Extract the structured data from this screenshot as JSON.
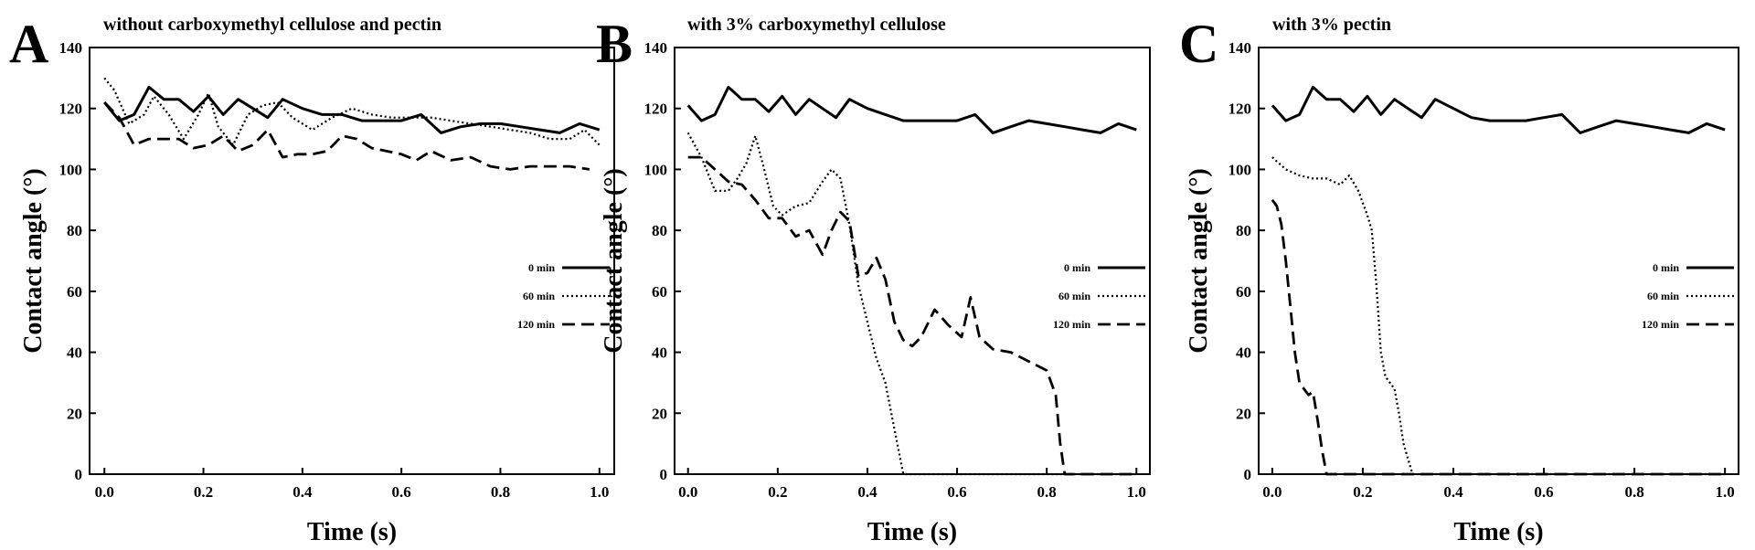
{
  "chart_data": [
    {
      "type": "line",
      "panel": "A",
      "title": "without carboxymethyl cellulose and pectin",
      "xlabel": "Time (s)",
      "ylabel": "Contact angle (°)",
      "xlim": [
        -0.03,
        1.03
      ],
      "ylim": [
        0,
        140
      ],
      "xticks": [
        "0.0",
        "0.2",
        "0.4",
        "0.6",
        "0.8",
        "1.0"
      ],
      "yticks": [
        "0",
        "20",
        "40",
        "60",
        "80",
        "100",
        "120",
        "140"
      ],
      "grid": false,
      "legend_position": "right",
      "series": [
        {
          "name": "0 min",
          "style": "solid",
          "x": [
            0.0,
            0.03,
            0.06,
            0.09,
            0.12,
            0.15,
            0.18,
            0.21,
            0.24,
            0.27,
            0.3,
            0.33,
            0.36,
            0.4,
            0.44,
            0.48,
            0.52,
            0.56,
            0.6,
            0.64,
            0.68,
            0.72,
            0.76,
            0.8,
            0.84,
            0.88,
            0.92,
            0.96,
            1.0
          ],
          "y": [
            122,
            116,
            118,
            127,
            123,
            123,
            119,
            124,
            118,
            123,
            120,
            117,
            123,
            120,
            118,
            118,
            116,
            116,
            116,
            118,
            112,
            114,
            115,
            115,
            114,
            113,
            112,
            115,
            113
          ]
        },
        {
          "name": "60 min",
          "style": "dotted",
          "x": [
            0.0,
            0.02,
            0.05,
            0.08,
            0.1,
            0.13,
            0.16,
            0.19,
            0.21,
            0.23,
            0.26,
            0.29,
            0.32,
            0.35,
            0.38,
            0.42,
            0.46,
            0.5,
            0.54,
            0.58,
            0.62,
            0.66,
            0.7,
            0.74,
            0.78,
            0.82,
            0.86,
            0.9,
            0.94,
            0.97,
            1.0
          ],
          "y": [
            130,
            126,
            115,
            118,
            124,
            118,
            110,
            118,
            125,
            114,
            108,
            118,
            121,
            122,
            117,
            113,
            117,
            120,
            118,
            117,
            117,
            117,
            116,
            115,
            114,
            113,
            112,
            110,
            110,
            113,
            108
          ]
        },
        {
          "name": "120 min",
          "style": "dashed",
          "x": [
            0.0,
            0.03,
            0.06,
            0.09,
            0.12,
            0.15,
            0.18,
            0.21,
            0.24,
            0.27,
            0.3,
            0.33,
            0.36,
            0.39,
            0.42,
            0.45,
            0.48,
            0.51,
            0.54,
            0.57,
            0.6,
            0.63,
            0.66,
            0.7,
            0.74,
            0.78,
            0.82,
            0.86,
            0.9,
            0.94,
            0.98
          ],
          "y": [
            122,
            117,
            108,
            110,
            110,
            110,
            107,
            108,
            111,
            106,
            108,
            113,
            104,
            105,
            105,
            106,
            111,
            110,
            107,
            106,
            105,
            103,
            106,
            103,
            104,
            101,
            100,
            101,
            101,
            101,
            100
          ]
        }
      ]
    },
    {
      "type": "line",
      "panel": "B",
      "title": "with 3% carboxymethyl cellulose",
      "xlabel": "Time (s)",
      "ylabel": "Contact angle (°)",
      "xlim": [
        -0.03,
        1.03
      ],
      "ylim": [
        0,
        140
      ],
      "xticks": [
        "0.0",
        "0.2",
        "0.4",
        "0.6",
        "0.8",
        "1.0"
      ],
      "yticks": [
        "0",
        "20",
        "40",
        "60",
        "80",
        "100",
        "120",
        "140"
      ],
      "grid": false,
      "legend_position": "right",
      "series": [
        {
          "name": "0 min",
          "style": "solid",
          "x": [
            0.0,
            0.03,
            0.06,
            0.09,
            0.12,
            0.15,
            0.18,
            0.21,
            0.24,
            0.27,
            0.3,
            0.33,
            0.36,
            0.4,
            0.44,
            0.48,
            0.52,
            0.56,
            0.6,
            0.64,
            0.68,
            0.72,
            0.76,
            0.8,
            0.84,
            0.88,
            0.92,
            0.96,
            1.0
          ],
          "y": [
            121,
            116,
            118,
            127,
            123,
            123,
            119,
            124,
            118,
            123,
            120,
            117,
            123,
            120,
            118,
            116,
            116,
            116,
            116,
            118,
            112,
            114,
            116,
            115,
            114,
            113,
            112,
            115,
            113
          ]
        },
        {
          "name": "60 min",
          "style": "dotted",
          "x": [
            0.0,
            0.03,
            0.06,
            0.09,
            0.11,
            0.13,
            0.15,
            0.17,
            0.19,
            0.21,
            0.24,
            0.27,
            0.3,
            0.32,
            0.34,
            0.36,
            0.38,
            0.4,
            0.42,
            0.44,
            0.46,
            0.48,
            0.5,
            0.6,
            0.7,
            0.8,
            0.9,
            1.0
          ],
          "y": [
            112,
            104,
            93,
            93,
            97,
            102,
            111,
            100,
            88,
            85,
            88,
            89,
            96,
            100,
            97,
            82,
            62,
            50,
            38,
            30,
            15,
            0,
            0,
            0,
            0,
            0,
            0,
            0
          ]
        },
        {
          "name": "120 min",
          "style": "dashed",
          "x": [
            0.0,
            0.03,
            0.06,
            0.09,
            0.12,
            0.15,
            0.18,
            0.21,
            0.24,
            0.27,
            0.3,
            0.32,
            0.34,
            0.36,
            0.38,
            0.4,
            0.42,
            0.44,
            0.46,
            0.48,
            0.5,
            0.52,
            0.55,
            0.58,
            0.61,
            0.63,
            0.65,
            0.68,
            0.72,
            0.76,
            0.8,
            0.82,
            0.83,
            0.84,
            0.86,
            0.9,
            1.0
          ],
          "y": [
            104,
            104,
            100,
            96,
            95,
            90,
            84,
            84,
            78,
            80,
            72,
            80,
            86,
            83,
            65,
            66,
            71,
            64,
            50,
            44,
            42,
            45,
            54,
            49,
            45,
            58,
            45,
            41,
            40,
            37,
            34,
            26,
            10,
            0,
            0,
            0,
            0
          ]
        }
      ]
    },
    {
      "type": "line",
      "panel": "C",
      "title": "with 3% pectin",
      "xlabel": "Time (s)",
      "ylabel": "Contact angle (°)",
      "xlim": [
        -0.03,
        1.03
      ],
      "ylim": [
        0,
        140
      ],
      "xticks": [
        "0.0",
        "0.2",
        "0.4",
        "0.6",
        "0.8",
        "1.0"
      ],
      "yticks": [
        "0",
        "20",
        "40",
        "60",
        "80",
        "100",
        "120",
        "140"
      ],
      "grid": false,
      "legend_position": "right",
      "series": [
        {
          "name": "0 min",
          "style": "solid",
          "x": [
            0.0,
            0.03,
            0.06,
            0.09,
            0.12,
            0.15,
            0.18,
            0.21,
            0.24,
            0.27,
            0.3,
            0.33,
            0.36,
            0.4,
            0.44,
            0.48,
            0.52,
            0.56,
            0.6,
            0.64,
            0.68,
            0.72,
            0.76,
            0.8,
            0.84,
            0.88,
            0.92,
            0.96,
            1.0
          ],
          "y": [
            121,
            116,
            118,
            127,
            123,
            123,
            119,
            124,
            118,
            123,
            120,
            117,
            123,
            120,
            117,
            116,
            116,
            116,
            117,
            118,
            112,
            114,
            116,
            115,
            114,
            113,
            112,
            115,
            113
          ]
        },
        {
          "name": "60 min",
          "style": "dotted",
          "x": [
            0.0,
            0.03,
            0.06,
            0.09,
            0.12,
            0.15,
            0.17,
            0.19,
            0.21,
            0.22,
            0.23,
            0.24,
            0.25,
            0.27,
            0.28,
            0.29,
            0.3,
            0.31,
            0.32,
            0.4,
            0.6,
            0.8,
            1.0
          ],
          "y": [
            104,
            100,
            98,
            97,
            97,
            95,
            98,
            93,
            85,
            80,
            62,
            40,
            32,
            28,
            20,
            10,
            5,
            0,
            0,
            0,
            0,
            0,
            0
          ]
        },
        {
          "name": "120 min",
          "style": "dashed",
          "x": [
            0.0,
            0.01,
            0.02,
            0.03,
            0.04,
            0.05,
            0.06,
            0.07,
            0.08,
            0.09,
            0.1,
            0.11,
            0.12,
            0.2,
            0.4,
            0.6,
            0.8,
            1.0
          ],
          "y": [
            90,
            88,
            82,
            70,
            55,
            40,
            30,
            28,
            26,
            27,
            18,
            8,
            0,
            0,
            0,
            0,
            0,
            0
          ]
        }
      ]
    }
  ]
}
